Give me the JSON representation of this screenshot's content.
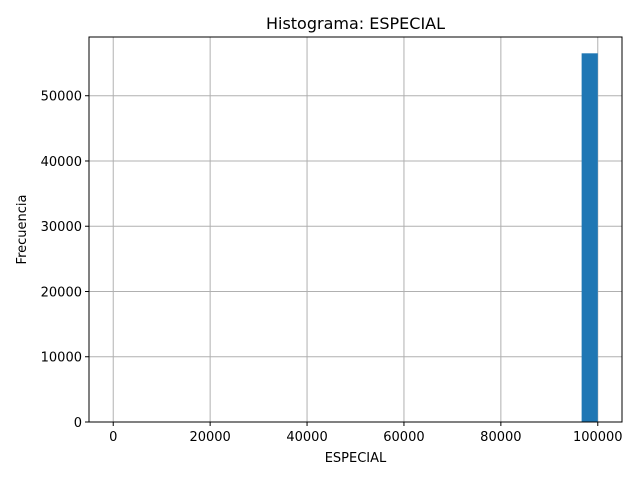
{
  "chart_data": {
    "type": "bar",
    "title": "Histograma: ESPECIAL",
    "xlabel": "ESPECIAL",
    "ylabel": "Frecuencia",
    "xlim": [
      -5000,
      105000
    ],
    "ylim": [
      0,
      59000
    ],
    "grid": true,
    "xticks": [
      0,
      20000,
      40000,
      60000,
      80000,
      100000
    ],
    "xtick_labels": [
      "0",
      "20000",
      "40000",
      "60000",
      "80000",
      "100000"
    ],
    "yticks": [
      0,
      10000,
      20000,
      30000,
      40000,
      50000
    ],
    "ytick_labels": [
      "0",
      "10000",
      "20000",
      "30000",
      "40000",
      "50000"
    ],
    "bins": [
      {
        "x0": 96667,
        "x1": 100000,
        "count": 56500
      }
    ],
    "bar_color": "#1f77b4",
    "grid_color": "#b0b0b0"
  }
}
